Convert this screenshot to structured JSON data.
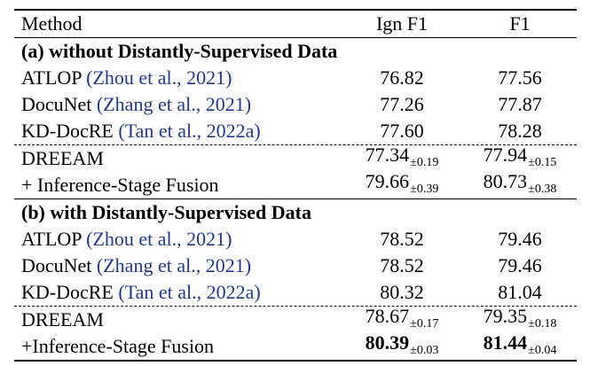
{
  "header": {
    "method": "Method",
    "ign_f1": "Ign F1",
    "f1": "F1"
  },
  "section_a": {
    "title": "(a) without Distantly-Supervised Data",
    "baselines": [
      {
        "name": "ATLOP",
        "cite": "(Zhou et al., 2021)",
        "ign_f1": "76.82",
        "f1": "77.56"
      },
      {
        "name": "DocuNet",
        "cite": "(Zhang et al., 2021)",
        "ign_f1": "77.26",
        "f1": "77.87"
      },
      {
        "name": "KD-DocRE",
        "cite": "(Tan et al., 2022a)",
        "ign_f1": "77.60",
        "f1": "78.28"
      }
    ],
    "ours": [
      {
        "name": "DREEAM",
        "ign_f1": "77.34",
        "ign_f1_std": "±0.19",
        "f1": "77.94",
        "f1_std": "±0.15"
      },
      {
        "name": "+ Inference-Stage Fusion",
        "ign_f1": "79.66",
        "ign_f1_std": "±0.39",
        "f1": "80.73",
        "f1_std": "±0.38"
      }
    ]
  },
  "section_b": {
    "title": "(b) with Distantly-Supervised Data",
    "baselines": [
      {
        "name": "ATLOP",
        "cite": "(Zhou et al., 2021)",
        "ign_f1": "78.52",
        "f1": "79.46"
      },
      {
        "name": "DocuNet",
        "cite": "(Zhang et al., 2021)",
        "ign_f1": "78.52",
        "f1": "79.46"
      },
      {
        "name": "KD-DocRE",
        "cite": "(Tan et al., 2022a)",
        "ign_f1": "80.32",
        "f1": "81.04"
      }
    ],
    "ours": [
      {
        "name": "DREEAM",
        "ign_f1": "78.67",
        "ign_f1_std": "±0.17",
        "f1": "79.35",
        "f1_std": "±0.18"
      },
      {
        "name": "+Inference-Stage Fusion",
        "ign_f1": "80.39",
        "ign_f1_std": "±0.03",
        "f1": "81.44",
        "f1_std": "±0.04",
        "bold": true
      }
    ]
  }
}
